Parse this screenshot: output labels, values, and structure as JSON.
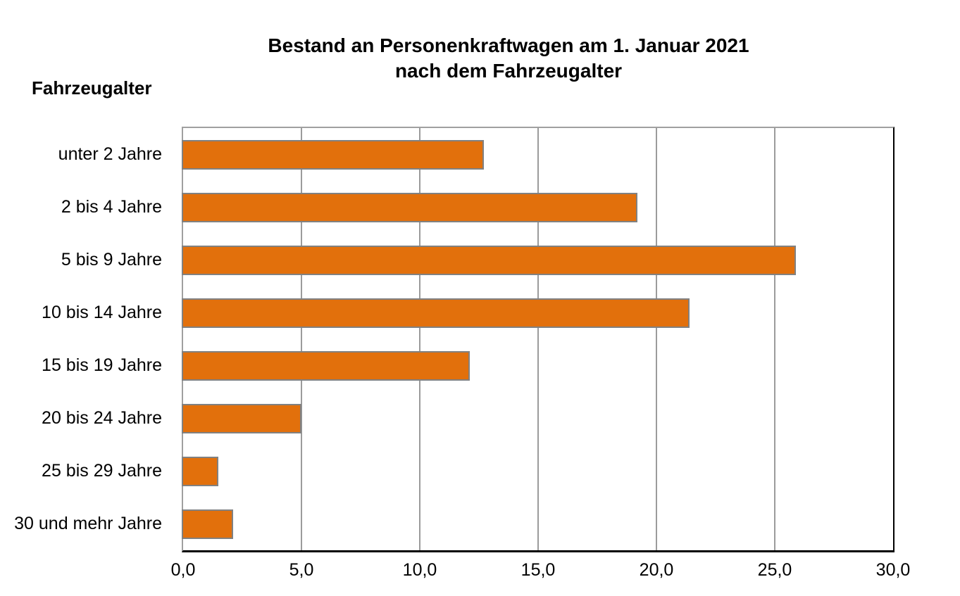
{
  "title": {
    "line1": "Bestand an Personenkraftwagen am 1. Januar 2021",
    "line2": "nach dem Fahrzeugalter"
  },
  "chart_data": {
    "type": "bar",
    "orientation": "horizontal",
    "title": "Bestand an Personenkraftwagen am 1. Januar 2021 nach dem Fahrzeugalter",
    "ylabel": "Fahrzeugalter",
    "xlabel": "",
    "categories": [
      "unter 2 Jahre",
      "2 bis 4 Jahre",
      "5 bis 9 Jahre",
      "10 bis 14 Jahre",
      "15 bis 19 Jahre",
      "20 bis 24 Jahre",
      "25 bis 29 Jahre",
      "30 und mehr Jahre"
    ],
    "values": [
      12.7,
      19.2,
      25.9,
      21.4,
      12.1,
      5.0,
      1.5,
      2.1
    ],
    "xlim": [
      0,
      30
    ],
    "x_ticks": [
      0,
      5,
      10,
      15,
      20,
      25,
      30
    ],
    "x_tick_labels": [
      "0,0",
      "5,0",
      "10,0",
      "15,0",
      "20,0",
      "25,0",
      "30,0"
    ],
    "gridline_ticks": [
      5,
      10,
      15,
      20,
      25
    ],
    "grid": true,
    "legend": false,
    "colors": {
      "bar_fill": "#e2700c",
      "bar_border": "#818181",
      "gridline": "#9b9b9b",
      "plot_border_light": "#a0a0a0",
      "axis_line": "#000000",
      "text": "#000000",
      "background": "#ffffff"
    }
  }
}
